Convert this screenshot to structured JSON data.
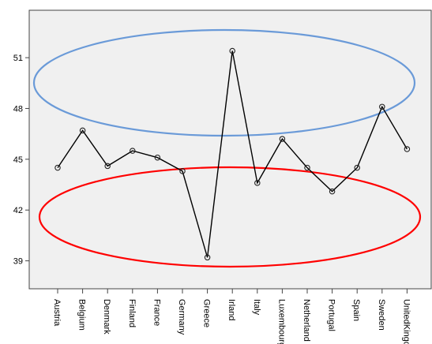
{
  "chart_data": {
    "type": "line",
    "categories": [
      "Austria",
      "Belgium",
      "Denmark",
      "Finland",
      "France",
      "Germany",
      "Greece",
      "Irland",
      "Italy",
      "Luxembourg",
      "Netherland",
      "Portugal",
      "Spain",
      "Sweden",
      "UnitedKingdo"
    ],
    "series": [
      {
        "values": [
          44.5,
          46.7,
          44.6,
          45.5,
          45.1,
          44.3,
          39.2,
          51.4,
          43.6,
          46.2,
          44.5,
          43.1,
          44.5,
          48.1,
          45.6
        ]
      }
    ],
    "y_ticks": [
      39,
      42,
      45,
      48,
      51
    ],
    "ylim": [
      37.35,
      53.8
    ],
    "grid": false,
    "line_color": "#000000",
    "annotations": [
      {
        "type": "ellipse",
        "color": "#6a9ad8",
        "encloses": [
          "Irland",
          "Sweden"
        ]
      },
      {
        "type": "ellipse",
        "color": "#ff0000",
        "encloses": [
          "Greece"
        ]
      }
    ]
  }
}
